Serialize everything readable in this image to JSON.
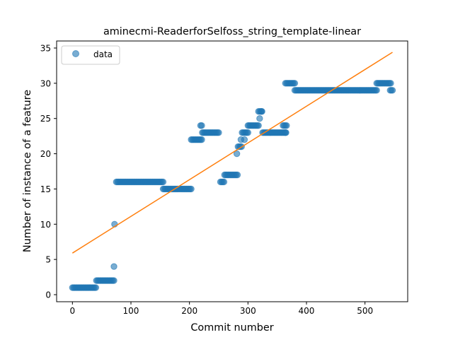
{
  "chart_data": {
    "type": "scatter",
    "title": "aminecmi-ReaderforSelfoss_string_template-linear",
    "xlabel": "Commit number",
    "ylabel": "Number of instance of a feature",
    "xlim": [
      -27,
      573
    ],
    "ylim": [
      -1,
      36
    ],
    "xticks": [
      0,
      100,
      200,
      300,
      400,
      500
    ],
    "yticks": [
      0,
      5,
      10,
      15,
      20,
      25,
      30,
      35
    ],
    "grid": false,
    "legend": {
      "placement": "top-left",
      "entries": [
        "data"
      ]
    },
    "colors": {
      "points": "#1f77b4",
      "fit": "#ff7f0e"
    },
    "series": [
      {
        "name": "data",
        "kind": "points",
        "segments": [
          {
            "x_start": 0,
            "x_end": 40,
            "step": 2,
            "y": 1
          },
          {
            "x_start": 41,
            "x_end": 71,
            "step": 2,
            "y": 2
          },
          {
            "x_start": 75,
            "x_end": 155,
            "step": 2,
            "y": 16
          },
          {
            "x_start": 155,
            "x_end": 203,
            "step": 2,
            "y": 15
          },
          {
            "x_start": 203,
            "x_end": 222,
            "step": 2,
            "y": 22
          },
          {
            "x_start": 222,
            "x_end": 250,
            "step": 2,
            "y": 23
          },
          {
            "x_start": 253,
            "x_end": 259,
            "step": 2,
            "y": 16
          },
          {
            "x_start": 260,
            "x_end": 282,
            "step": 2,
            "y": 17
          },
          {
            "x_start": 283,
            "x_end": 287,
            "step": 2,
            "y": 21
          },
          {
            "x_start": 290,
            "x_end": 300,
            "step": 2,
            "y": 23
          },
          {
            "x_start": 300,
            "x_end": 318,
            "step": 2,
            "y": 24
          },
          {
            "x_start": 318,
            "x_end": 325,
            "step": 2,
            "y": 26
          },
          {
            "x_start": 325,
            "x_end": 365,
            "step": 2,
            "y": 23
          },
          {
            "x_start": 360,
            "x_end": 366,
            "step": 2,
            "y": 24
          },
          {
            "x_start": 364,
            "x_end": 380,
            "step": 2,
            "y": 30
          },
          {
            "x_start": 380,
            "x_end": 520,
            "step": 2,
            "y": 29
          },
          {
            "x_start": 520,
            "x_end": 545,
            "step": 2,
            "y": 30
          },
          {
            "x_start": 543,
            "x_end": 547,
            "step": 2,
            "y": 29
          }
        ],
        "points": [
          [
            71,
            4
          ],
          [
            72,
            10
          ],
          [
            219,
            24
          ],
          [
            221,
            24
          ],
          [
            281,
            20
          ],
          [
            288,
            22
          ],
          [
            320,
            25
          ],
          [
            323,
            26
          ],
          [
            364,
            23
          ],
          [
            289,
            21
          ],
          [
            294,
            22
          ]
        ]
      },
      {
        "name": "",
        "kind": "line",
        "x": [
          0,
          547
        ],
        "y": [
          5.9,
          34.4
        ]
      }
    ]
  }
}
